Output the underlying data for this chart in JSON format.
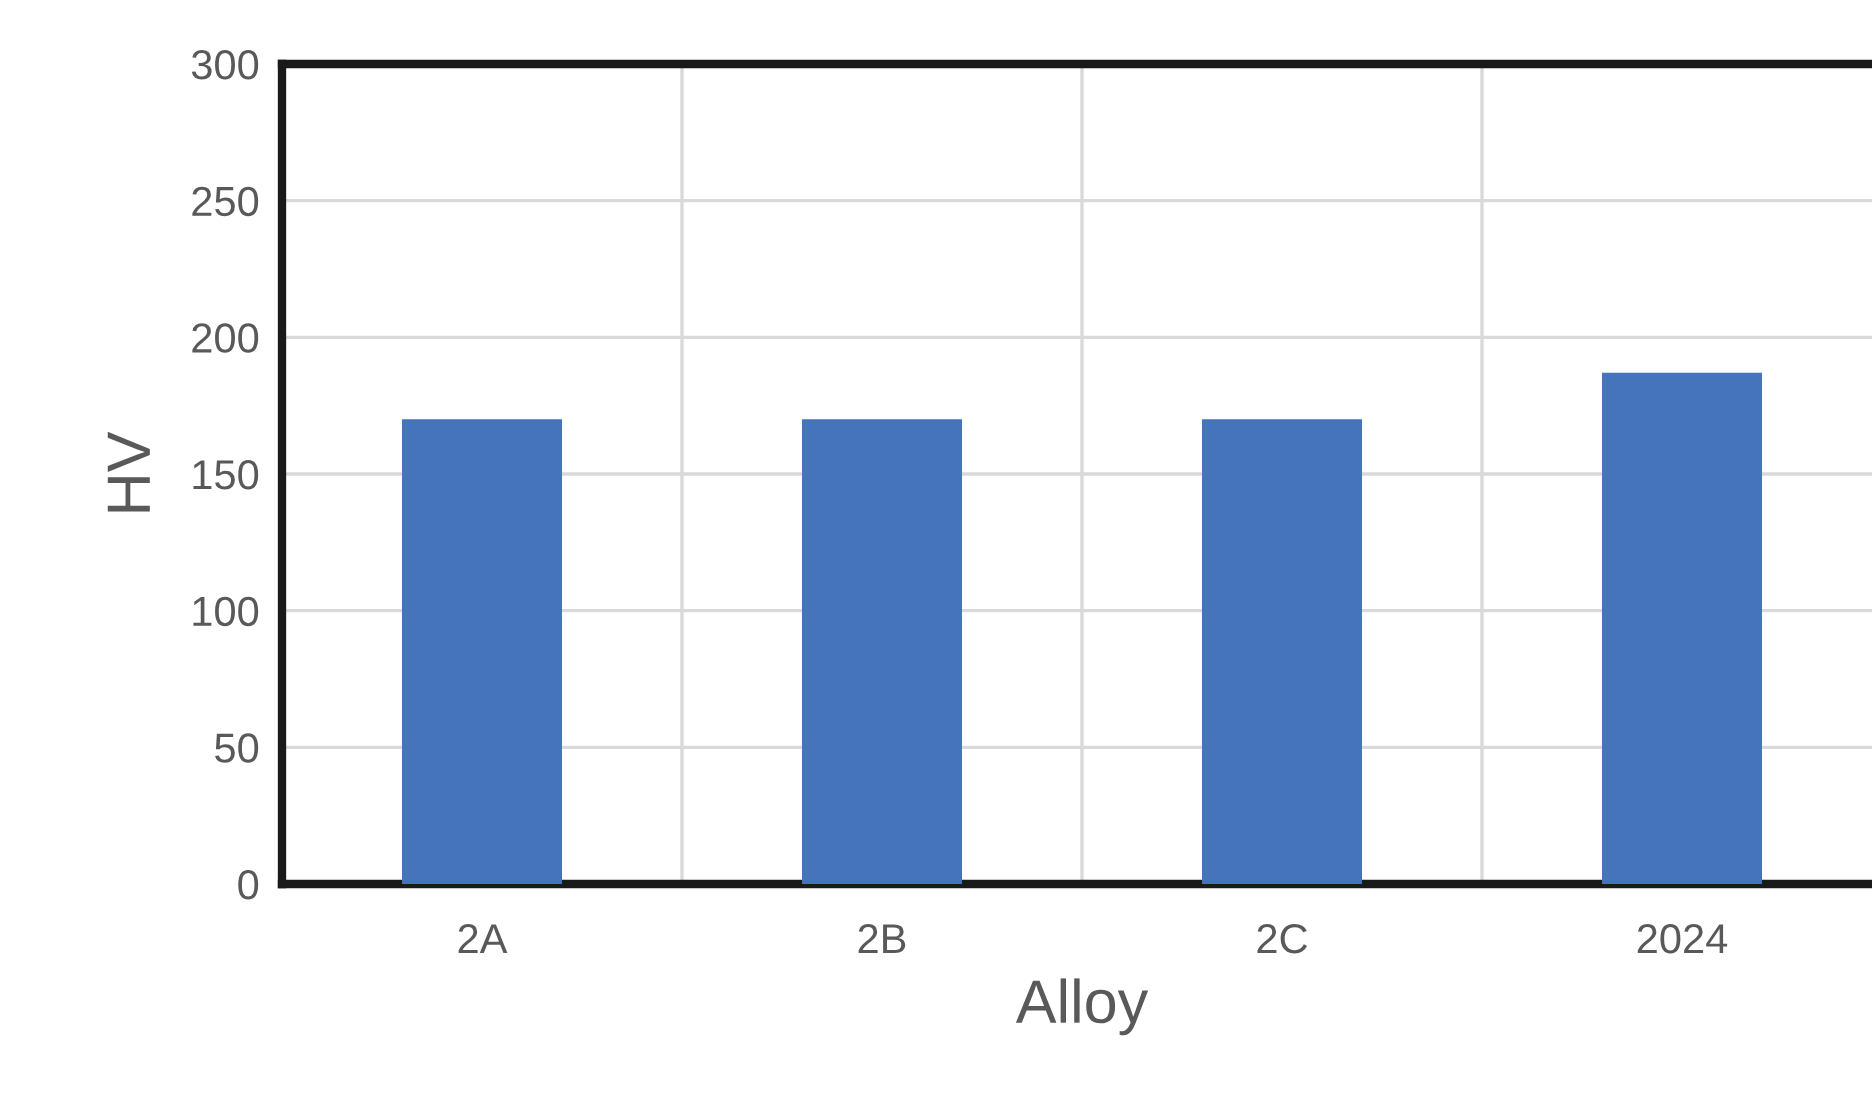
{
  "chart_data": {
    "type": "bar",
    "xlabel": "Alloy",
    "ylabel": "HV",
    "categories": [
      "2A",
      "2B",
      "2C",
      "2024"
    ],
    "values": [
      170,
      170,
      170,
      187
    ],
    "color": "#4674bc",
    "ylim": [
      0,
      300
    ],
    "yticks": [
      0,
      50,
      100,
      150,
      200,
      250,
      300
    ],
    "grid": true
  }
}
